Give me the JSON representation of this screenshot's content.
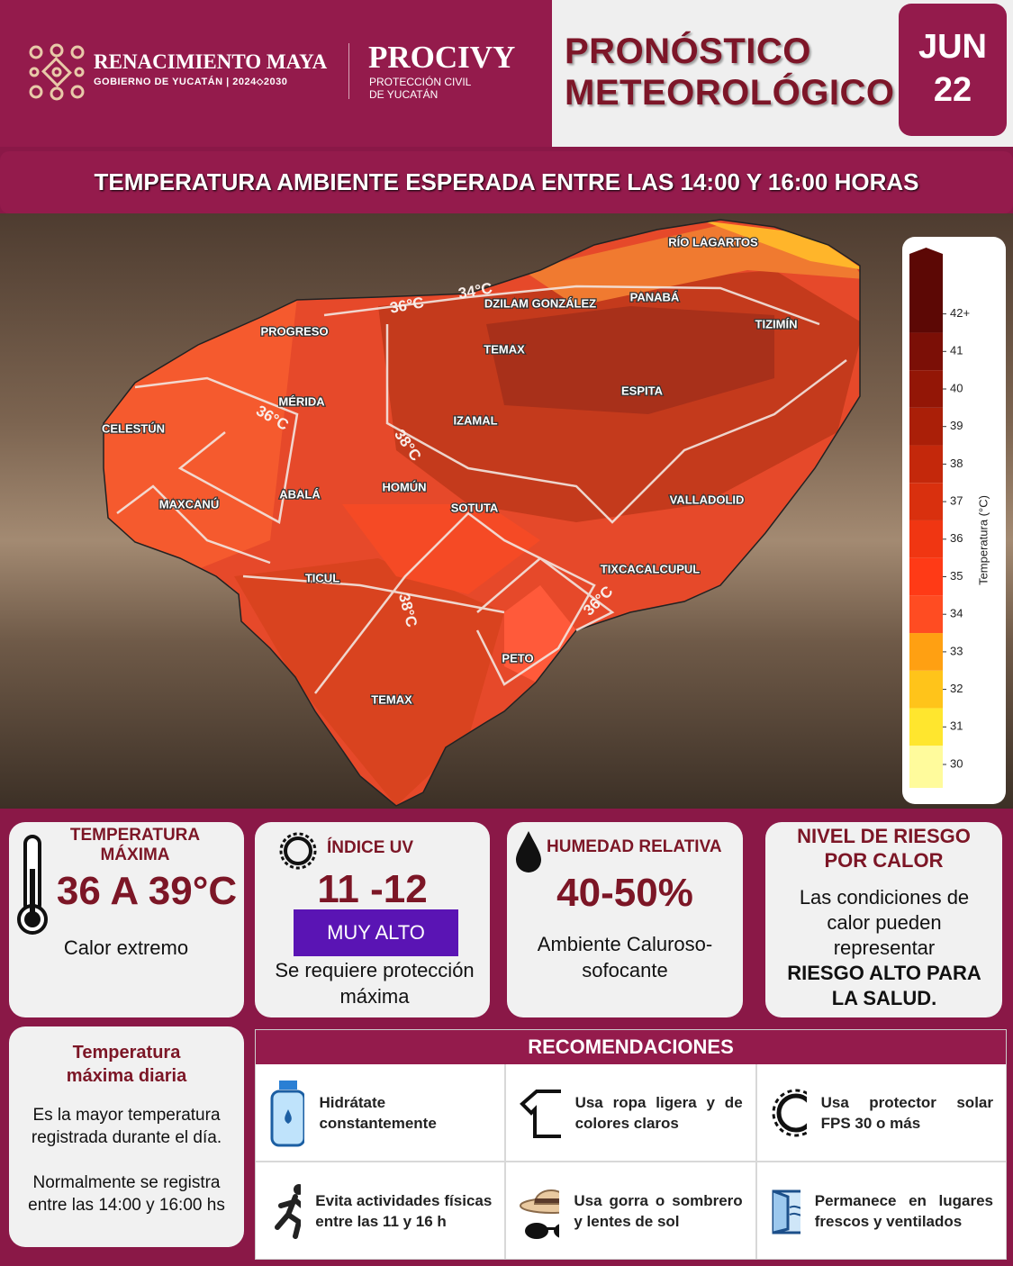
{
  "header": {
    "brand": "RENACIMIENTO MAYA",
    "brand_sub": "GOBIERNO DE YUCATÁN",
    "brand_years": "2024⬦2030",
    "agency": "PROCIVY",
    "agency_sub1": "PROTECCIÓN CIVIL",
    "agency_sub2": "DE YUCATÁN",
    "title_line1": "PRONÓSTICO",
    "title_line2": "METEOROLÓGICO",
    "month": "JUN",
    "day": "22"
  },
  "banner": "TEMPERATURA AMBIENTE ESPERADA ENTRE LAS 14:00 Y 16:00 HORAS",
  "map": {
    "places": [
      "RÍO LAGARTOS",
      "DZILAM GONZÁLEZ",
      "PANABÁ",
      "TIZIMÍN",
      "PROGRESO",
      "TEMAX",
      "ESPITA",
      "MÉRIDA",
      "CELESTÚN",
      "IZAMAL",
      "HOMÚN",
      "ABALÁ",
      "MAXCANÚ",
      "SOTUTA",
      "VALLADOLID",
      "TIXCACALCUPUL",
      "TICUL",
      "PETO",
      "TEMAX"
    ],
    "isotherm_labels": [
      "36°C",
      "34°C",
      "36°C",
      "38°C",
      "38°C",
      "36°C"
    ],
    "colorbar": {
      "label": "Temperatura (°C)",
      "ticks": [
        30,
        31,
        32,
        33,
        34,
        35,
        36,
        37,
        38,
        39,
        40,
        41,
        "42+"
      ],
      "colors": [
        "#fffb9c",
        "#ffe62e",
        "#ffc41a",
        "#ffa012",
        "#ff4c22",
        "#ff3a16",
        "#f03612",
        "#d9300e",
        "#c4280b",
        "#aa1f08",
        "#931606",
        "#7b0f06",
        "#5c0805"
      ]
    }
  },
  "cards": {
    "max_temp": {
      "title": "TEMPERATURA MÁXIMA",
      "value": "36 A 39°C",
      "text": "Calor extremo"
    },
    "uv": {
      "title": "ÍNDICE  UV",
      "value": "11 -12",
      "badge": "MUY ALTO",
      "text": "Se requiere protección máxima"
    },
    "humidity": {
      "title": "HUMEDAD RELATIVA",
      "value": "40-50%",
      "text": "Ambiente Caluroso-sofocante"
    },
    "risk": {
      "title": "NIVEL DE RIESGO POR CALOR",
      "text": "Las condiciones de calor pueden representar",
      "emphasis": "RIESGO ALTO PARA LA SALUD."
    }
  },
  "definition": {
    "title": "Temperatura máxima diaria",
    "p1": "Es la mayor temperatura registrada durante el día.",
    "p2": "Normalmente se registra entre las 14:00 y 16:00 hs"
  },
  "recommendations": {
    "title": "RECOMENDACIONES",
    "items": [
      "Hidrátate constantemente",
      "Usa ropa ligera y de colores claros",
      "Usa protector solar FPS 30 o más",
      "Evita actividades físicas entre las 11 y 16 h",
      "Usa gorra o sombrero y lentes de sol",
      "Permanece en lugares frescos y ventilados"
    ]
  }
}
